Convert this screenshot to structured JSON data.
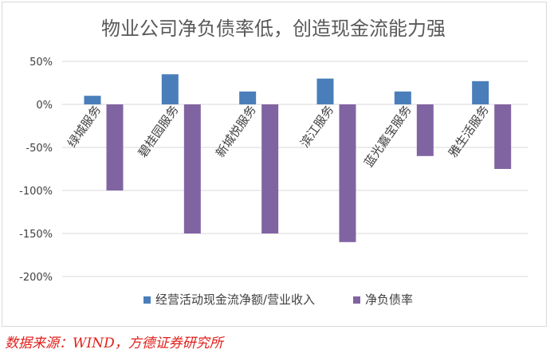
{
  "chart_data": {
    "type": "bar",
    "title": "物业公司净负债率低，创造现金流能力强",
    "categories": [
      "绿城服务",
      "碧桂园服务",
      "新城悦服务",
      "滨江服务",
      "蓝光嘉宝服务",
      "雅生活服务"
    ],
    "series": [
      {
        "name": "经营活动现金流净额/营业收入",
        "values": [
          10,
          35,
          15,
          30,
          15,
          27
        ],
        "color": "#4a7ebb"
      },
      {
        "name": "净负债率",
        "values": [
          -100,
          -150,
          -150,
          -160,
          -60,
          -75
        ],
        "color": "#8064a2"
      }
    ],
    "ylim": [
      -200,
      50
    ],
    "yticks": [
      "50%",
      "0%",
      "-50%",
      "-100%",
      "-150%",
      "-200%"
    ],
    "grid": true,
    "legend": "bottom"
  },
  "source": "数据来源：WIND，方德证券研究所"
}
